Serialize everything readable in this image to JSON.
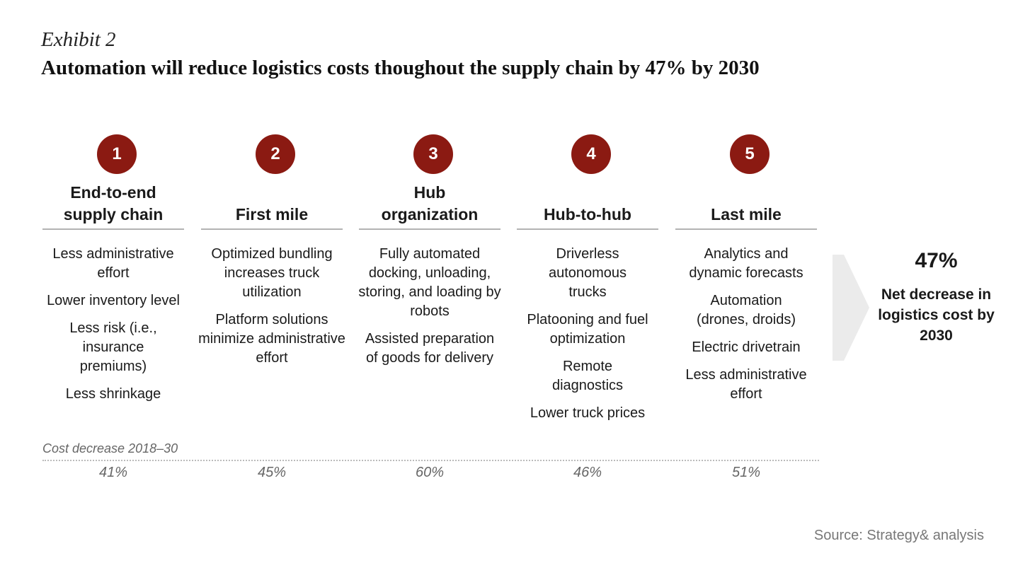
{
  "exhibit": "Exhibit 2",
  "headline": "Automation will reduce logistics costs thoughout the supply chain by 47% by 2030",
  "stages": [
    {
      "number": "1",
      "title": "End-to-end supply chain",
      "items": [
        "Less administrative effort",
        "Lower inventory level",
        "Less risk (i.e., insurance premiums)",
        "Less shrinkage"
      ],
      "cost_decrease": "41%"
    },
    {
      "number": "2",
      "title": "First mile",
      "items": [
        "Optimized bundling increases truck utilization",
        "Platform solutions minimize administrative effort"
      ],
      "cost_decrease": "45%"
    },
    {
      "number": "3",
      "title": "Hub organization",
      "items": [
        "Fully automated docking, unloading, storing, and loading by robots",
        "Assisted preparation of goods for delivery"
      ],
      "cost_decrease": "60%"
    },
    {
      "number": "4",
      "title": "Hub-to-hub",
      "items": [
        "Driverless autonomous trucks",
        "Platooning and fuel optimization",
        "Remote diagnostics",
        "Lower truck prices"
      ],
      "cost_decrease": "46%"
    },
    {
      "number": "5",
      "title": "Last mile",
      "items": [
        "Analytics and dynamic forecasts",
        "Automation (drones, droids)",
        "Electric drivetrain",
        "Less administrative effort"
      ],
      "cost_decrease": "51%"
    }
  ],
  "cost_label": "Cost decrease 2018–30",
  "net": {
    "value": "47%",
    "label": "Net decrease in logistics cost by 2030"
  },
  "source": "Source: Strategy& analysis",
  "colors": {
    "badge": "#8b1a12",
    "arrow": "#ebebeb"
  }
}
